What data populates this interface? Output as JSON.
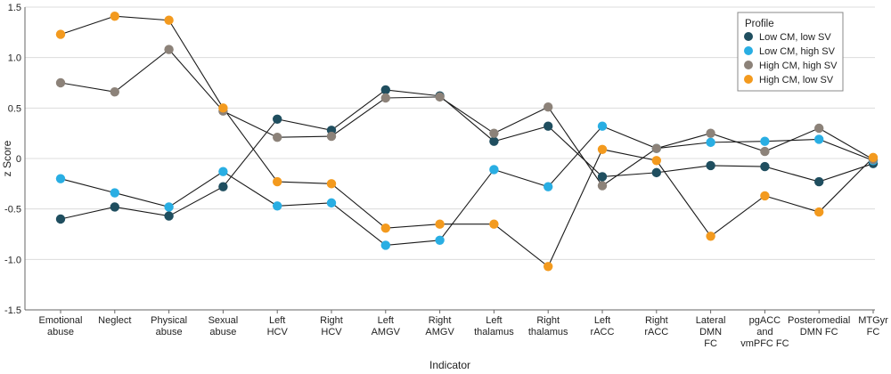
{
  "chart_data": {
    "type": "line",
    "title": "",
    "xlabel": "Indicator",
    "ylabel": "z Score",
    "ylim": [
      -1.5,
      1.5
    ],
    "yticks": [
      "1.5",
      "1.0",
      "0.5",
      "0",
      "-0.5",
      "-1.0",
      "-1.5"
    ],
    "ytick_values": [
      1.5,
      1.0,
      0.5,
      0,
      -0.5,
      -1.0,
      -1.5
    ],
    "grid": "horizontal",
    "legend_placement": "top-right",
    "legend_title": "Profile",
    "categories": [
      [
        "Emotional",
        "abuse"
      ],
      [
        "Neglect"
      ],
      [
        "Physical",
        "abuse"
      ],
      [
        "Sexual",
        "abuse"
      ],
      [
        "Left",
        "HCV"
      ],
      [
        "Right",
        "HCV"
      ],
      [
        "Left",
        "AMGV"
      ],
      [
        "Right",
        "AMGV"
      ],
      [
        "Left",
        "thalamus"
      ],
      [
        "Right",
        "thalamus"
      ],
      [
        "Left",
        "rACC"
      ],
      [
        "Right",
        "rACC"
      ],
      [
        "Lateral",
        "DMN",
        "FC"
      ],
      [
        "pgACC",
        "and",
        "vmPFC FC"
      ],
      [
        "Posteromedial",
        "DMN FC"
      ],
      [
        "MTGyr",
        "FC"
      ]
    ],
    "series": [
      {
        "name": "Low CM, low SV",
        "color": "#1f4e5f",
        "values": [
          -0.6,
          -0.48,
          -0.57,
          -0.28,
          0.39,
          0.28,
          0.68,
          0.62,
          0.17,
          0.32,
          -0.18,
          -0.14,
          -0.07,
          -0.08,
          -0.23,
          -0.05
        ]
      },
      {
        "name": "Low CM, high SV",
        "color": "#29aee3",
        "values": [
          -0.2,
          -0.34,
          -0.48,
          -0.13,
          -0.47,
          -0.44,
          -0.86,
          -0.81,
          -0.11,
          -0.28,
          0.32,
          0.1,
          0.16,
          0.17,
          0.19,
          -0.02
        ]
      },
      {
        "name": "High CM, high SV",
        "color": "#8c8279",
        "values": [
          0.75,
          0.66,
          1.08,
          0.47,
          0.21,
          0.22,
          0.6,
          0.61,
          0.25,
          0.51,
          -0.27,
          0.1,
          0.25,
          0.07,
          0.3,
          -0.01
        ]
      },
      {
        "name": "High CM, low SV",
        "color": "#f39a1e",
        "values": [
          1.23,
          1.41,
          1.37,
          0.5,
          -0.23,
          -0.25,
          -0.69,
          -0.65,
          -0.65,
          -1.07,
          0.09,
          -0.02,
          -0.77,
          -0.37,
          -0.53,
          0.01
        ]
      }
    ]
  }
}
